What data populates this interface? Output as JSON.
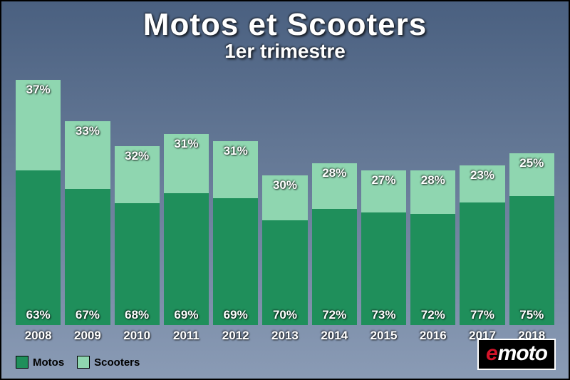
{
  "title": "Motos et Scooters",
  "subtitle": "1er trimestre",
  "title_fontsize": 44,
  "subtitle_fontsize": 28,
  "background_gradient": {
    "top": "#4a6080",
    "bottom": "#8a9bb5"
  },
  "chart": {
    "type": "stacked-bar",
    "categories": [
      "2008",
      "2009",
      "2010",
      "2011",
      "2012",
      "2013",
      "2014",
      "2015",
      "2016",
      "2017",
      "2018"
    ],
    "series": [
      {
        "name": "Motos",
        "color": "#1f8f5b",
        "values_pct": [
          63,
          67,
          68,
          69,
          69,
          70,
          72,
          73,
          72,
          77,
          75
        ]
      },
      {
        "name": "Scooters",
        "color": "#8fd6b0",
        "values_pct": [
          37,
          33,
          32,
          31,
          31,
          30,
          28,
          27,
          28,
          23,
          25
        ]
      }
    ],
    "bar_heights_relative": [
      100,
      83,
      73,
      78,
      75,
      61,
      66,
      63,
      63,
      65,
      70
    ],
    "label_color": "#ffffff",
    "label_fontsize": 17,
    "xlabel_fontsize": 17
  },
  "legend": {
    "items": [
      {
        "label": "Motos",
        "color": "#1f8f5b"
      },
      {
        "label": "Scooters",
        "color": "#8fd6b0"
      }
    ],
    "fontsize": 15
  },
  "logo": {
    "background": "#000000",
    "e_color": "#d4142a",
    "text_e": "e",
    "text_rest": "moto",
    "fontsize": 30
  }
}
